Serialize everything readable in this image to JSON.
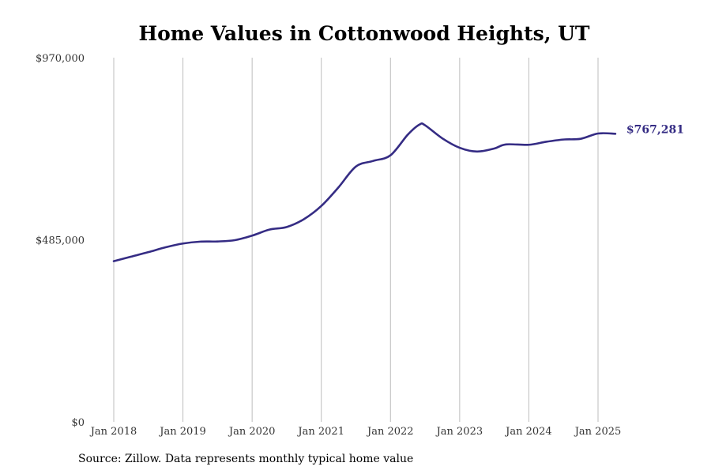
{
  "chart_data": {
    "type": "line",
    "title": "Home Values in Cottonwood Heights, UT",
    "xlabel": "",
    "ylabel": "",
    "ylim": [
      0,
      970000
    ],
    "y_ticks": [
      {
        "value": 0,
        "label": "$0"
      },
      {
        "value": 485000,
        "label": "$485,000"
      },
      {
        "value": 970000,
        "label": "$970,000"
      }
    ],
    "x_ticks": [
      {
        "value": 2018.0,
        "label": "Jan 2018"
      },
      {
        "value": 2019.0,
        "label": "Jan 2019"
      },
      {
        "value": 2020.0,
        "label": "Jan 2020"
      },
      {
        "value": 2021.0,
        "label": "Jan 2021"
      },
      {
        "value": 2022.0,
        "label": "Jan 2022"
      },
      {
        "value": 2023.0,
        "label": "Jan 2023"
      },
      {
        "value": 2024.0,
        "label": "Jan 2024"
      },
      {
        "value": 2025.0,
        "label": "Jan 2025"
      }
    ],
    "xlim": [
      2017.85,
      2026.4
    ],
    "vertical_grid": true,
    "horizontal_grid": false,
    "series": [
      {
        "color": "#352c84",
        "end_label": "$767,281",
        "points": [
          {
            "x": 2018.0,
            "y": 428000
          },
          {
            "x": 2018.25,
            "y": 440000
          },
          {
            "x": 2018.5,
            "y": 452000
          },
          {
            "x": 2018.75,
            "y": 465000
          },
          {
            "x": 2019.0,
            "y": 475000
          },
          {
            "x": 2019.25,
            "y": 480000
          },
          {
            "x": 2019.5,
            "y": 480500
          },
          {
            "x": 2019.75,
            "y": 484000
          },
          {
            "x": 2020.0,
            "y": 496000
          },
          {
            "x": 2020.25,
            "y": 512000
          },
          {
            "x": 2020.5,
            "y": 519000
          },
          {
            "x": 2020.75,
            "y": 540000
          },
          {
            "x": 2021.0,
            "y": 575000
          },
          {
            "x": 2021.25,
            "y": 625000
          },
          {
            "x": 2021.5,
            "y": 680000
          },
          {
            "x": 2021.75,
            "y": 695000
          },
          {
            "x": 2022.0,
            "y": 710000
          },
          {
            "x": 2022.25,
            "y": 765000
          },
          {
            "x": 2022.42,
            "y": 792000
          },
          {
            "x": 2022.5,
            "y": 790000
          },
          {
            "x": 2022.75,
            "y": 755000
          },
          {
            "x": 2023.0,
            "y": 730000
          },
          {
            "x": 2023.25,
            "y": 720000
          },
          {
            "x": 2023.5,
            "y": 728000
          },
          {
            "x": 2023.67,
            "y": 739000
          },
          {
            "x": 2024.0,
            "y": 738000
          },
          {
            "x": 2024.25,
            "y": 746000
          },
          {
            "x": 2024.5,
            "y": 752000
          },
          {
            "x": 2024.75,
            "y": 754000
          },
          {
            "x": 2025.0,
            "y": 768000
          },
          {
            "x": 2025.25,
            "y": 767281
          }
        ]
      }
    ]
  },
  "source_note": "Source: Zillow. Data represents monthly typical home value"
}
